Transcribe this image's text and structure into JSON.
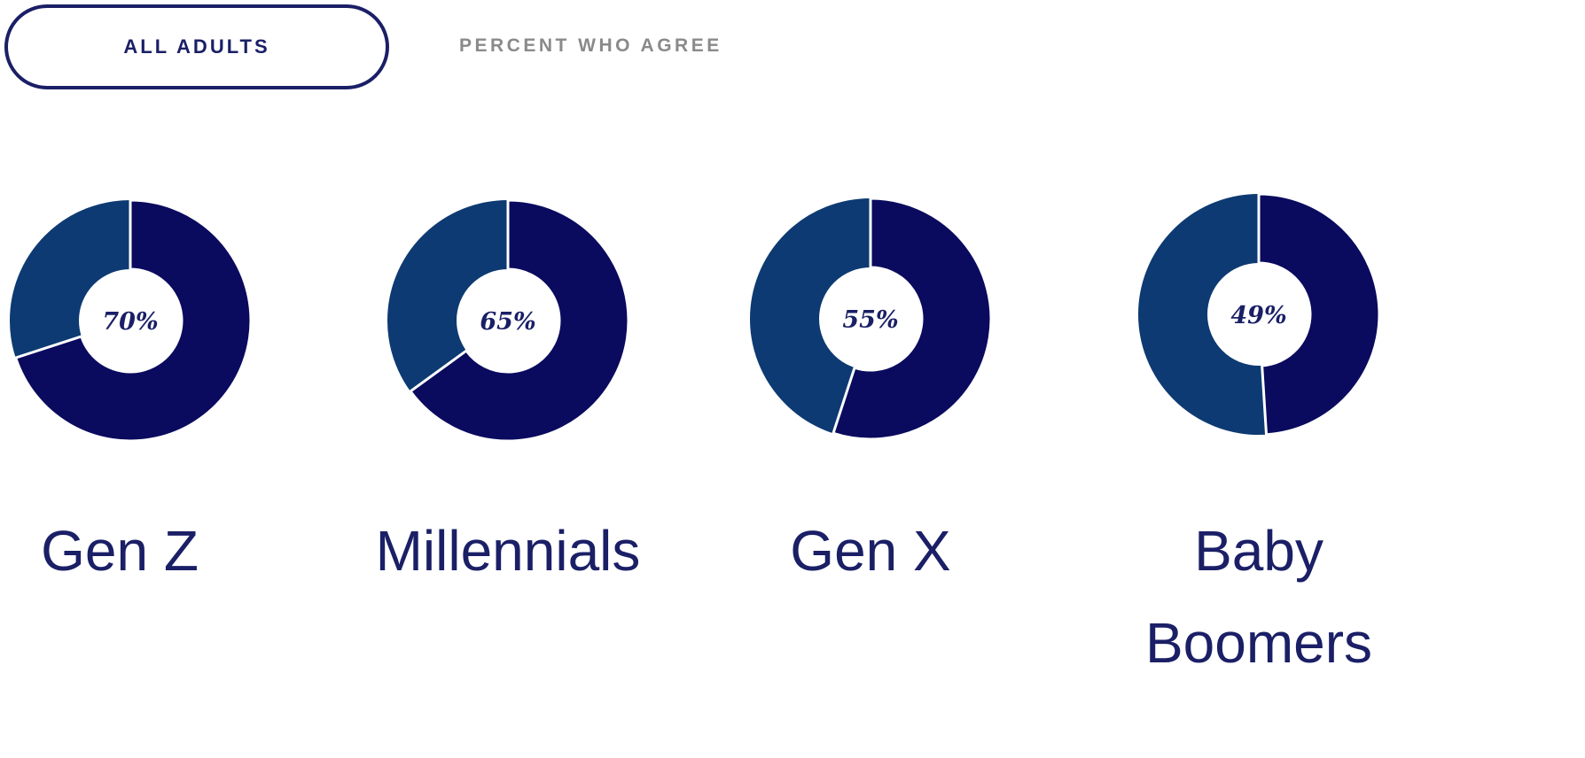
{
  "button": {
    "label": "ALL ADULTS"
  },
  "subtitle": "PERCENT WHO AGREE",
  "chart_data": [
    {
      "type": "pie",
      "title": "Gen Z",
      "values": [
        70
      ],
      "value_labels": [
        "70%"
      ],
      "color": "#0a0a5e",
      "track_color": "#0d3a72"
    },
    {
      "type": "pie",
      "title": "Millennials",
      "values": [
        65
      ],
      "value_labels": [
        "65%"
      ],
      "color": "#0a0a5e",
      "track_color": "#0d3a72"
    },
    {
      "type": "pie",
      "title": "Gen X",
      "values": [
        55
      ],
      "value_labels": [
        "55%"
      ],
      "color": "#0a0a5e",
      "track_color": "#0d3a72"
    },
    {
      "type": "pie",
      "title": "Baby Boomers",
      "values": [
        49
      ],
      "value_labels": [
        "49%"
      ],
      "color": "#0a0a5e",
      "track_color": "#0d3a72"
    }
  ]
}
